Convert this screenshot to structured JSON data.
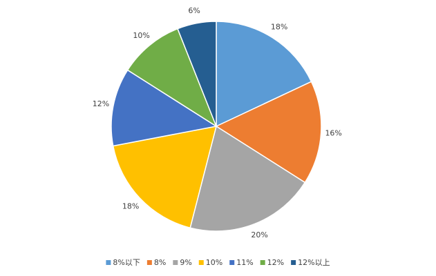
{
  "chart_data": {
    "type": "pie",
    "categories": [
      "8%以下",
      "8%",
      "9%",
      "10%",
      "11%",
      "12%",
      "12%以上"
    ],
    "values": [
      18,
      16,
      20,
      18,
      12,
      10,
      6
    ],
    "value_labels": [
      "18%",
      "16%",
      "20%",
      "18%",
      "12%",
      "10%",
      "6%"
    ],
    "colors": [
      "#5b9bd5",
      "#ed7d31",
      "#a5a5a5",
      "#ffc000",
      "#4472c4",
      "#70ad47",
      "#255e91"
    ],
    "legend": "bottom"
  }
}
